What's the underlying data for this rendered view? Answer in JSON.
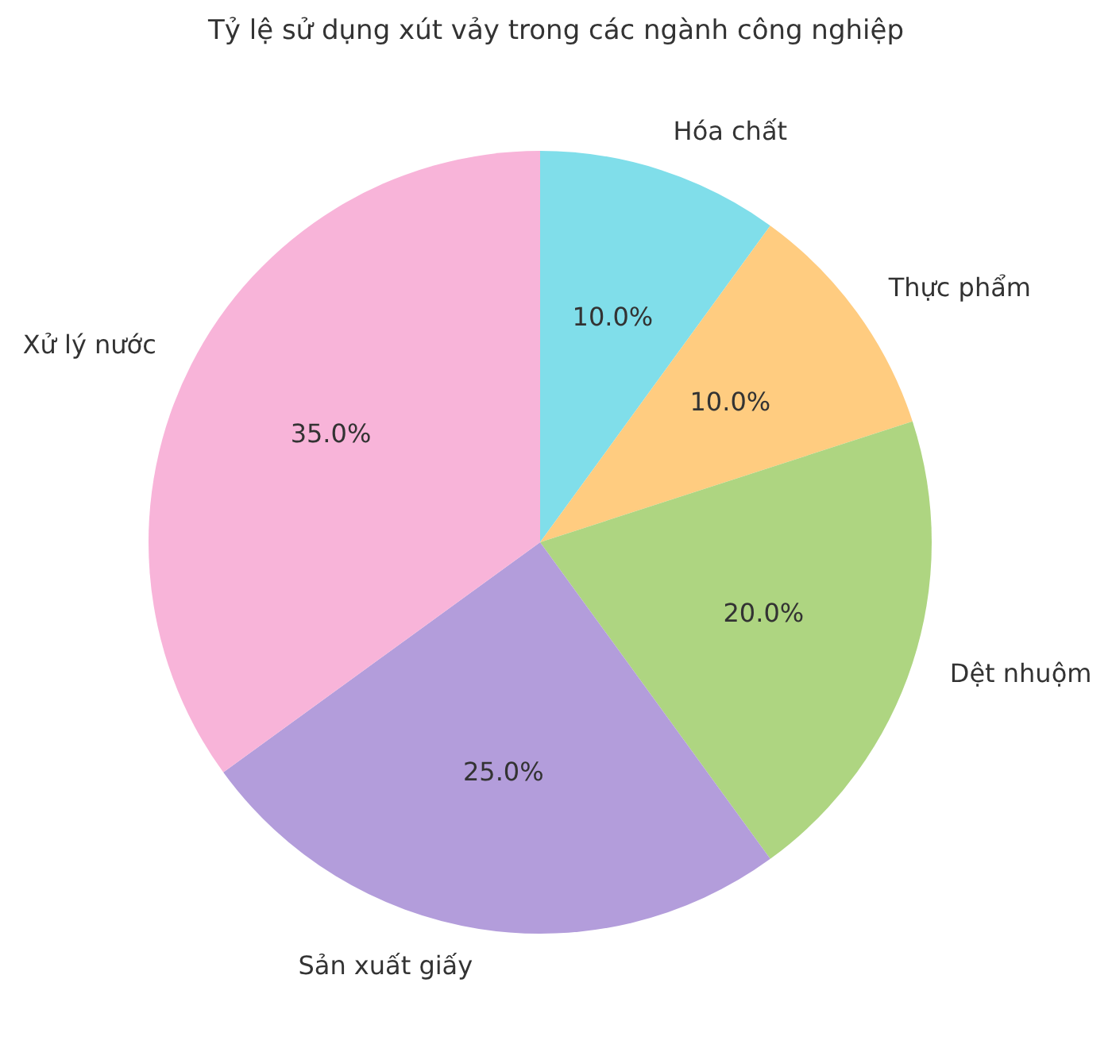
{
  "chart_data": {
    "type": "pie",
    "title": "Tỷ lệ sử dụng xút vảy trong các ngành công nghiệp",
    "categories": [
      "Hóa chất",
      "Thực phẩm",
      "Dệt nhuộm",
      "Sản xuất giấy",
      "Xử lý nước"
    ],
    "values": [
      10,
      10,
      20,
      25,
      35
    ],
    "colors": [
      "#80deea",
      "#ffcc80",
      "#aed581",
      "#b39ddb",
      "#f8b4d9"
    ],
    "value_labels": [
      "10.0%",
      "10.0%",
      "20.0%",
      "25.0%",
      "35.0%"
    ],
    "legend": false
  }
}
